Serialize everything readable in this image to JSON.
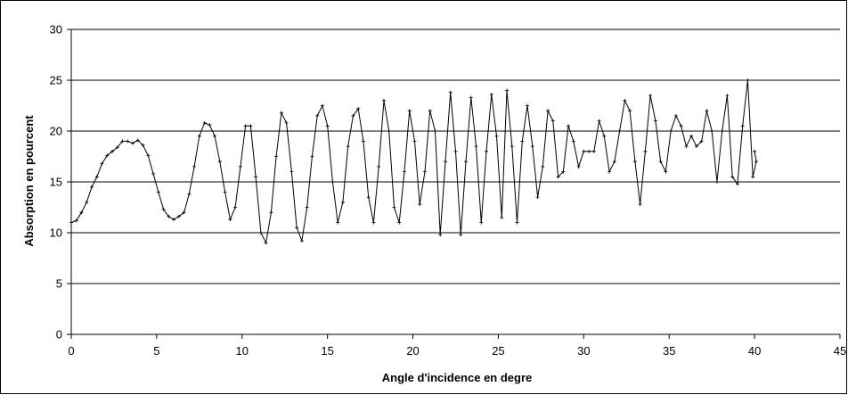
{
  "chart_data": {
    "type": "line",
    "title": "",
    "xlabel": "Angle d'incidence en degre",
    "ylabel": "Absorption en pourcent",
    "xlim": [
      0,
      45
    ],
    "ylim": [
      0,
      30
    ],
    "xticks": [
      0,
      5,
      10,
      15,
      20,
      25,
      30,
      35,
      40,
      45
    ],
    "yticks": [
      0,
      5,
      10,
      15,
      20,
      25,
      30
    ],
    "grid": "horizontal",
    "legend": "none",
    "series": [
      {
        "color": "#000000",
        "marker": "plus",
        "points": [
          [
            0.0,
            11.0
          ],
          [
            0.3,
            11.2
          ],
          [
            0.6,
            12.0
          ],
          [
            0.9,
            13.0
          ],
          [
            1.2,
            14.5
          ],
          [
            1.5,
            15.5
          ],
          [
            1.8,
            16.8
          ],
          [
            2.1,
            17.6
          ],
          [
            2.4,
            18.0
          ],
          [
            2.7,
            18.4
          ],
          [
            3.0,
            19.0
          ],
          [
            3.3,
            19.0
          ],
          [
            3.6,
            18.8
          ],
          [
            3.9,
            19.1
          ],
          [
            4.2,
            18.6
          ],
          [
            4.5,
            17.6
          ],
          [
            4.8,
            15.8
          ],
          [
            5.1,
            14.0
          ],
          [
            5.4,
            12.3
          ],
          [
            5.7,
            11.6
          ],
          [
            6.0,
            11.3
          ],
          [
            6.3,
            11.6
          ],
          [
            6.6,
            12.0
          ],
          [
            6.9,
            13.8
          ],
          [
            7.2,
            16.5
          ],
          [
            7.5,
            19.5
          ],
          [
            7.8,
            20.8
          ],
          [
            8.1,
            20.6
          ],
          [
            8.4,
            19.5
          ],
          [
            8.7,
            17.0
          ],
          [
            9.0,
            14.0
          ],
          [
            9.3,
            11.3
          ],
          [
            9.6,
            12.5
          ],
          [
            9.9,
            16.5
          ],
          [
            10.2,
            20.5
          ],
          [
            10.5,
            20.5
          ],
          [
            10.8,
            15.5
          ],
          [
            11.1,
            10.0
          ],
          [
            11.4,
            9.0
          ],
          [
            11.7,
            12.0
          ],
          [
            12.0,
            17.5
          ],
          [
            12.3,
            21.8
          ],
          [
            12.6,
            20.8
          ],
          [
            12.9,
            16.0
          ],
          [
            13.2,
            10.5
          ],
          [
            13.5,
            9.2
          ],
          [
            13.8,
            12.5
          ],
          [
            14.1,
            17.5
          ],
          [
            14.4,
            21.5
          ],
          [
            14.7,
            22.5
          ],
          [
            15.0,
            20.5
          ],
          [
            15.3,
            15.0
          ],
          [
            15.6,
            11.0
          ],
          [
            15.9,
            13.0
          ],
          [
            16.2,
            18.5
          ],
          [
            16.5,
            21.5
          ],
          [
            16.8,
            22.2
          ],
          [
            17.1,
            19.0
          ],
          [
            17.4,
            13.5
          ],
          [
            17.7,
            11.0
          ],
          [
            18.0,
            16.5
          ],
          [
            18.3,
            23.0
          ],
          [
            18.6,
            20.0
          ],
          [
            18.9,
            12.5
          ],
          [
            19.2,
            11.0
          ],
          [
            19.5,
            16.0
          ],
          [
            19.8,
            22.0
          ],
          [
            20.1,
            19.0
          ],
          [
            20.4,
            12.8
          ],
          [
            20.7,
            16.0
          ],
          [
            21.0,
            22.0
          ],
          [
            21.3,
            20.0
          ],
          [
            21.6,
            9.8
          ],
          [
            21.9,
            17.0
          ],
          [
            22.2,
            23.8
          ],
          [
            22.5,
            18.0
          ],
          [
            22.8,
            9.8
          ],
          [
            23.1,
            17.0
          ],
          [
            23.4,
            23.3
          ],
          [
            23.7,
            18.5
          ],
          [
            24.0,
            11.0
          ],
          [
            24.3,
            18.0
          ],
          [
            24.6,
            23.6
          ],
          [
            24.9,
            19.5
          ],
          [
            25.2,
            11.5
          ],
          [
            25.5,
            24.0
          ],
          [
            25.8,
            18.5
          ],
          [
            26.1,
            11.0
          ],
          [
            26.4,
            19.0
          ],
          [
            26.7,
            22.5
          ],
          [
            27.0,
            18.5
          ],
          [
            27.3,
            13.5
          ],
          [
            27.6,
            16.5
          ],
          [
            27.9,
            22.0
          ],
          [
            28.2,
            21.0
          ],
          [
            28.5,
            15.5
          ],
          [
            28.8,
            16.0
          ],
          [
            29.1,
            20.5
          ],
          [
            29.4,
            19.0
          ],
          [
            29.7,
            16.5
          ],
          [
            30.0,
            18.0
          ],
          [
            30.3,
            18.0
          ],
          [
            30.6,
            18.0
          ],
          [
            30.9,
            21.0
          ],
          [
            31.2,
            19.5
          ],
          [
            31.5,
            16.0
          ],
          [
            31.8,
            17.0
          ],
          [
            32.1,
            20.0
          ],
          [
            32.4,
            23.0
          ],
          [
            32.7,
            22.0
          ],
          [
            33.0,
            17.0
          ],
          [
            33.3,
            12.8
          ],
          [
            33.6,
            18.0
          ],
          [
            33.9,
            23.5
          ],
          [
            34.2,
            21.0
          ],
          [
            34.5,
            17.0
          ],
          [
            34.8,
            16.0
          ],
          [
            35.1,
            20.0
          ],
          [
            35.4,
            21.5
          ],
          [
            35.7,
            20.5
          ],
          [
            36.0,
            18.5
          ],
          [
            36.3,
            19.5
          ],
          [
            36.6,
            18.5
          ],
          [
            36.9,
            19.0
          ],
          [
            37.2,
            22.0
          ],
          [
            37.5,
            20.0
          ],
          [
            37.8,
            15.0
          ],
          [
            38.1,
            20.0
          ],
          [
            38.4,
            23.5
          ],
          [
            38.7,
            15.5
          ],
          [
            39.0,
            14.8
          ],
          [
            39.3,
            20.5
          ],
          [
            39.6,
            25.0
          ],
          [
            39.9,
            15.5
          ],
          [
            40.1,
            17.0
          ],
          [
            40.0,
            18.0
          ]
        ]
      }
    ]
  }
}
